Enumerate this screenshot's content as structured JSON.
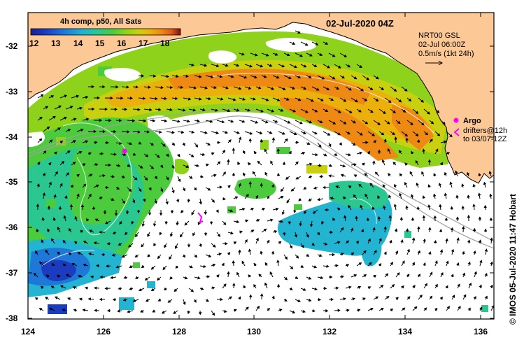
{
  "map": {
    "colorbar_title": "4h comp, p50, All Sats",
    "colorbar_ticks": [
      "12",
      "13",
      "14",
      "15",
      "16",
      "17",
      "18"
    ],
    "colorbar_colors": [
      "#1a1f8c",
      "#1c3cc0",
      "#1e78d8",
      "#22b4d0",
      "#2ac890",
      "#4ccc3c",
      "#8ed21c",
      "#c8d010",
      "#ecb00c",
      "#ee8a14",
      "#de5a18",
      "#b42414",
      "#7a1010"
    ],
    "date_title": "02-Jul-2020 04Z",
    "current_source": "NRT00 GSL",
    "current_time": "02-Jul 06:00Z",
    "vector_scale": "0.5m/s (1kt 24h)",
    "legend_argo": "Argo",
    "legend_drifters": "drifters@12h",
    "legend_drifters_to": "to 03/07-12Z",
    "credit": "© IMOS 05-Jul-2020 11:47 Hobart",
    "lat_labels": [
      "-32",
      "-33",
      "-34",
      "-35",
      "-36",
      "-37",
      "-38"
    ],
    "lon_labels": [
      "124",
      "126",
      "128",
      "130",
      "132",
      "134",
      "136"
    ],
    "land_color": "#fcc896",
    "ocean_color": "#ffffff",
    "argo_color": "#ff00ff"
  }
}
